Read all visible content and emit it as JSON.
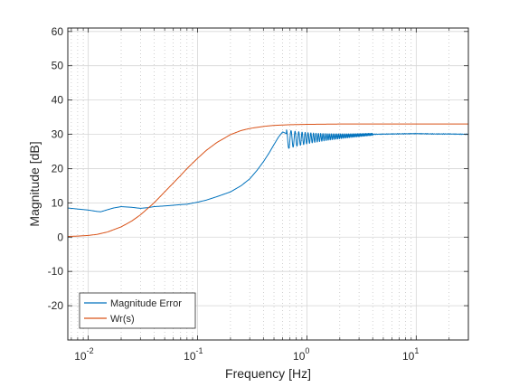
{
  "chart_data": {
    "type": "line",
    "title": "",
    "xlabel": "Frequency [Hz]",
    "ylabel": "Magnitude [dB]",
    "xscale": "log",
    "xlim": [
      0.0065,
      30
    ],
    "ylim": [
      -30,
      61
    ],
    "yticks": [
      -20,
      -10,
      0,
      10,
      20,
      30,
      40,
      50,
      60
    ],
    "xticks": [
      {
        "value": 0.01,
        "base": "10",
        "exp": "-2"
      },
      {
        "value": 0.1,
        "base": "10",
        "exp": "-1"
      },
      {
        "value": 1,
        "base": "10",
        "exp": "0"
      },
      {
        "value": 10,
        "base": "10",
        "exp": "1"
      }
    ],
    "grid": true,
    "minor_grid": true,
    "legend_position": "bottom-left",
    "series": [
      {
        "name": "Magnitude Error",
        "color": "#0072BD",
        "x": [
          0.0065,
          0.008,
          0.01,
          0.012,
          0.013,
          0.015,
          0.017,
          0.02,
          0.025,
          0.03,
          0.035,
          0.04,
          0.05,
          0.06,
          0.07,
          0.08,
          0.1,
          0.12,
          0.15,
          0.2,
          0.25,
          0.3,
          0.35,
          0.4,
          0.45,
          0.5,
          0.55,
          0.6,
          0.65
        ],
        "y": [
          8.5,
          8.2,
          7.9,
          7.5,
          7.4,
          8.0,
          8.5,
          8.9,
          8.7,
          8.4,
          8.6,
          8.9,
          9.1,
          9.3,
          9.5,
          9.6,
          10.2,
          10.8,
          11.8,
          13.2,
          15.0,
          17.0,
          19.5,
          22.0,
          24.5,
          27.0,
          29.2,
          30.7,
          30.2
        ],
        "oscillation": {
          "start": 0.65,
          "end": 4.0,
          "center_start": 28.5,
          "center_end": 30.0,
          "amp_start": 2.8,
          "amp_end": 0.3,
          "cycles_per_decade": 22
        },
        "tail_x": [
          4.0,
          6.0,
          10.0,
          15.0,
          20.0,
          30.0
        ],
        "tail_y": [
          30.0,
          30.1,
          30.2,
          30.1,
          30.1,
          30.0
        ]
      },
      {
        "name": "Wr(s)",
        "color": "#D95319",
        "x": [
          0.0065,
          0.008,
          0.01,
          0.012,
          0.015,
          0.02,
          0.025,
          0.03,
          0.04,
          0.05,
          0.06,
          0.07,
          0.08,
          0.1,
          0.12,
          0.15,
          0.2,
          0.25,
          0.3,
          0.4,
          0.5,
          0.7,
          1.0,
          2.0,
          5.0,
          10.0,
          30.0
        ],
        "y": [
          0.2,
          0.3,
          0.5,
          0.8,
          1.5,
          3.0,
          4.7,
          6.5,
          10.0,
          13.2,
          15.8,
          18.0,
          20.0,
          23.0,
          25.3,
          27.6,
          29.9,
          31.1,
          31.7,
          32.3,
          32.6,
          32.8,
          32.9,
          33.0,
          33.0,
          33.0,
          33.0
        ]
      }
    ]
  }
}
